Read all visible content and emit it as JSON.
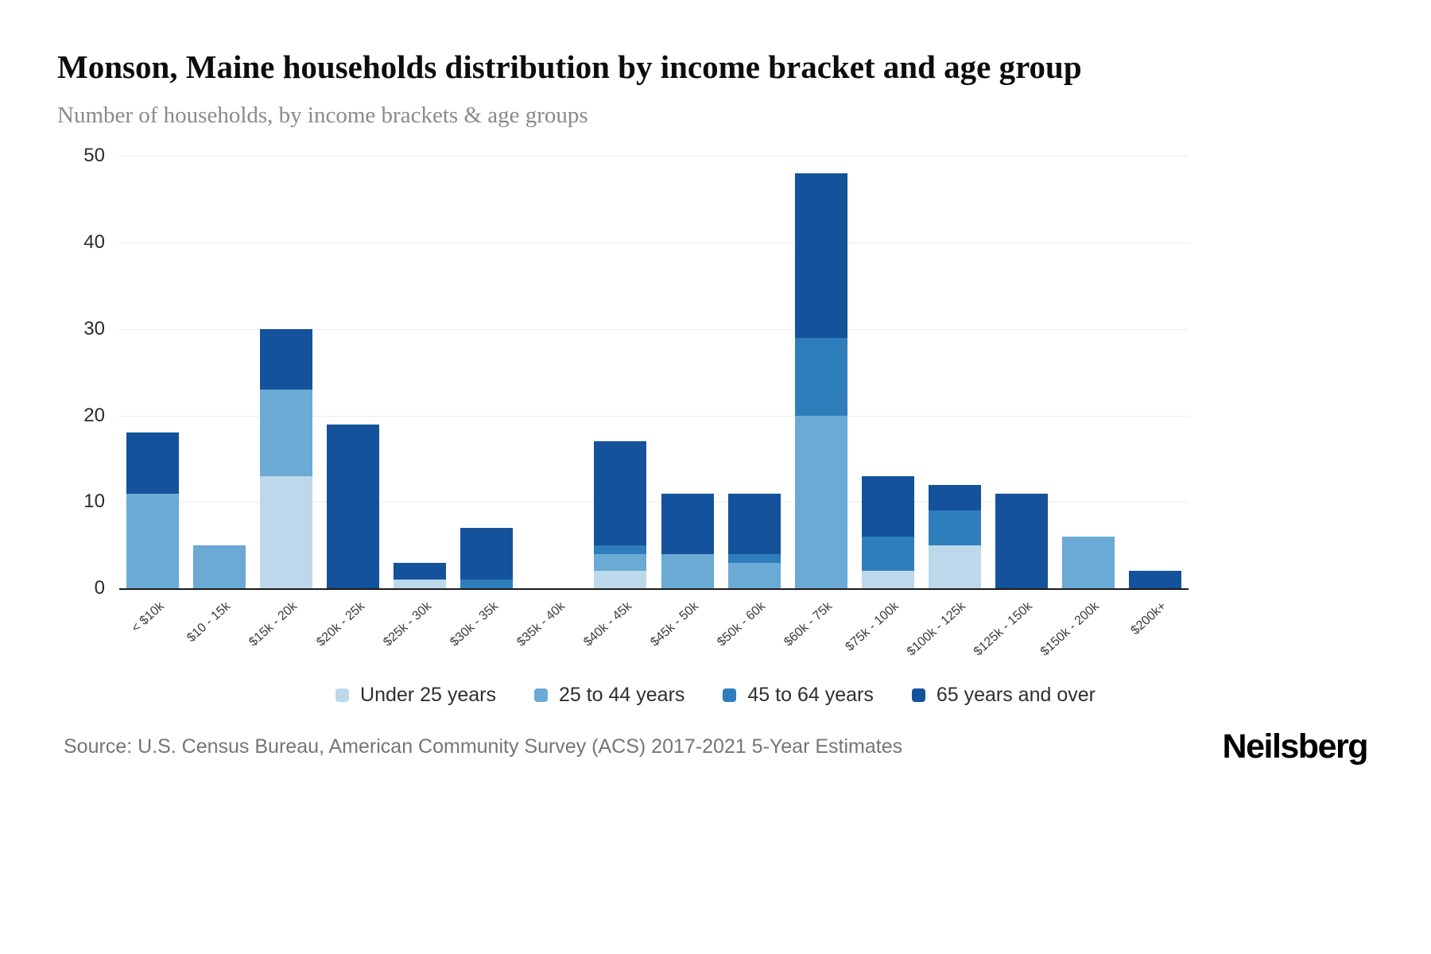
{
  "title": "Monson, Maine households distribution by income bracket and age group",
  "subtitle": "Number of households, by income brackets & age groups",
  "source": "Source: U.S. Census Bureau, American Community Survey (ACS) 2017-2021 5-Year Estimates",
  "brand": "Neilsberg",
  "chart_data": {
    "type": "bar",
    "stacked": true,
    "title": "Monson, Maine households distribution by income bracket and age group",
    "xlabel": "",
    "ylabel": "Number of households",
    "ylim": [
      0,
      50
    ],
    "yticks": [
      0,
      10,
      20,
      30,
      40,
      50
    ],
    "grid": true,
    "legend_position": "bottom",
    "categories": [
      "< $10k",
      "$10 - 15k",
      "$15k - 20k",
      "$20k - 25k",
      "$25k - 30k",
      "$30k - 35k",
      "$35k - 40k",
      "$40k - 45k",
      "$45k - 50k",
      "$50k - 60k",
      "$60k - 75k",
      "$75k - 100k",
      "$100k - 125k",
      "$125k - 150k",
      "$150k - 200k",
      "$200k+"
    ],
    "series": [
      {
        "name": "Under 25 years",
        "color": "#bcd8ea",
        "values": [
          0,
          0,
          13,
          0,
          1,
          0,
          0,
          2,
          0,
          0,
          0,
          2,
          5,
          0,
          0,
          0
        ]
      },
      {
        "name": "25 to 44 years",
        "color": "#6aaad4",
        "values": [
          11,
          5,
          10,
          0,
          0,
          0,
          0,
          2,
          4,
          3,
          20,
          0,
          0,
          0,
          6,
          0
        ]
      },
      {
        "name": "45 to 64 years",
        "color": "#2e7ebc",
        "values": [
          0,
          0,
          0,
          0,
          0,
          1,
          0,
          1,
          0,
          1,
          9,
          4,
          4,
          0,
          0,
          0
        ]
      },
      {
        "name": "65 years and over",
        "color": "#14529c",
        "values": [
          7,
          0,
          7,
          19,
          2,
          6,
          0,
          12,
          7,
          7,
          19,
          7,
          3,
          11,
          0,
          2
        ]
      }
    ],
    "totals": [
      18,
      5,
      30,
      19,
      3,
      7,
      0,
      17,
      11,
      11,
      48,
      13,
      12,
      11,
      6,
      2
    ]
  }
}
